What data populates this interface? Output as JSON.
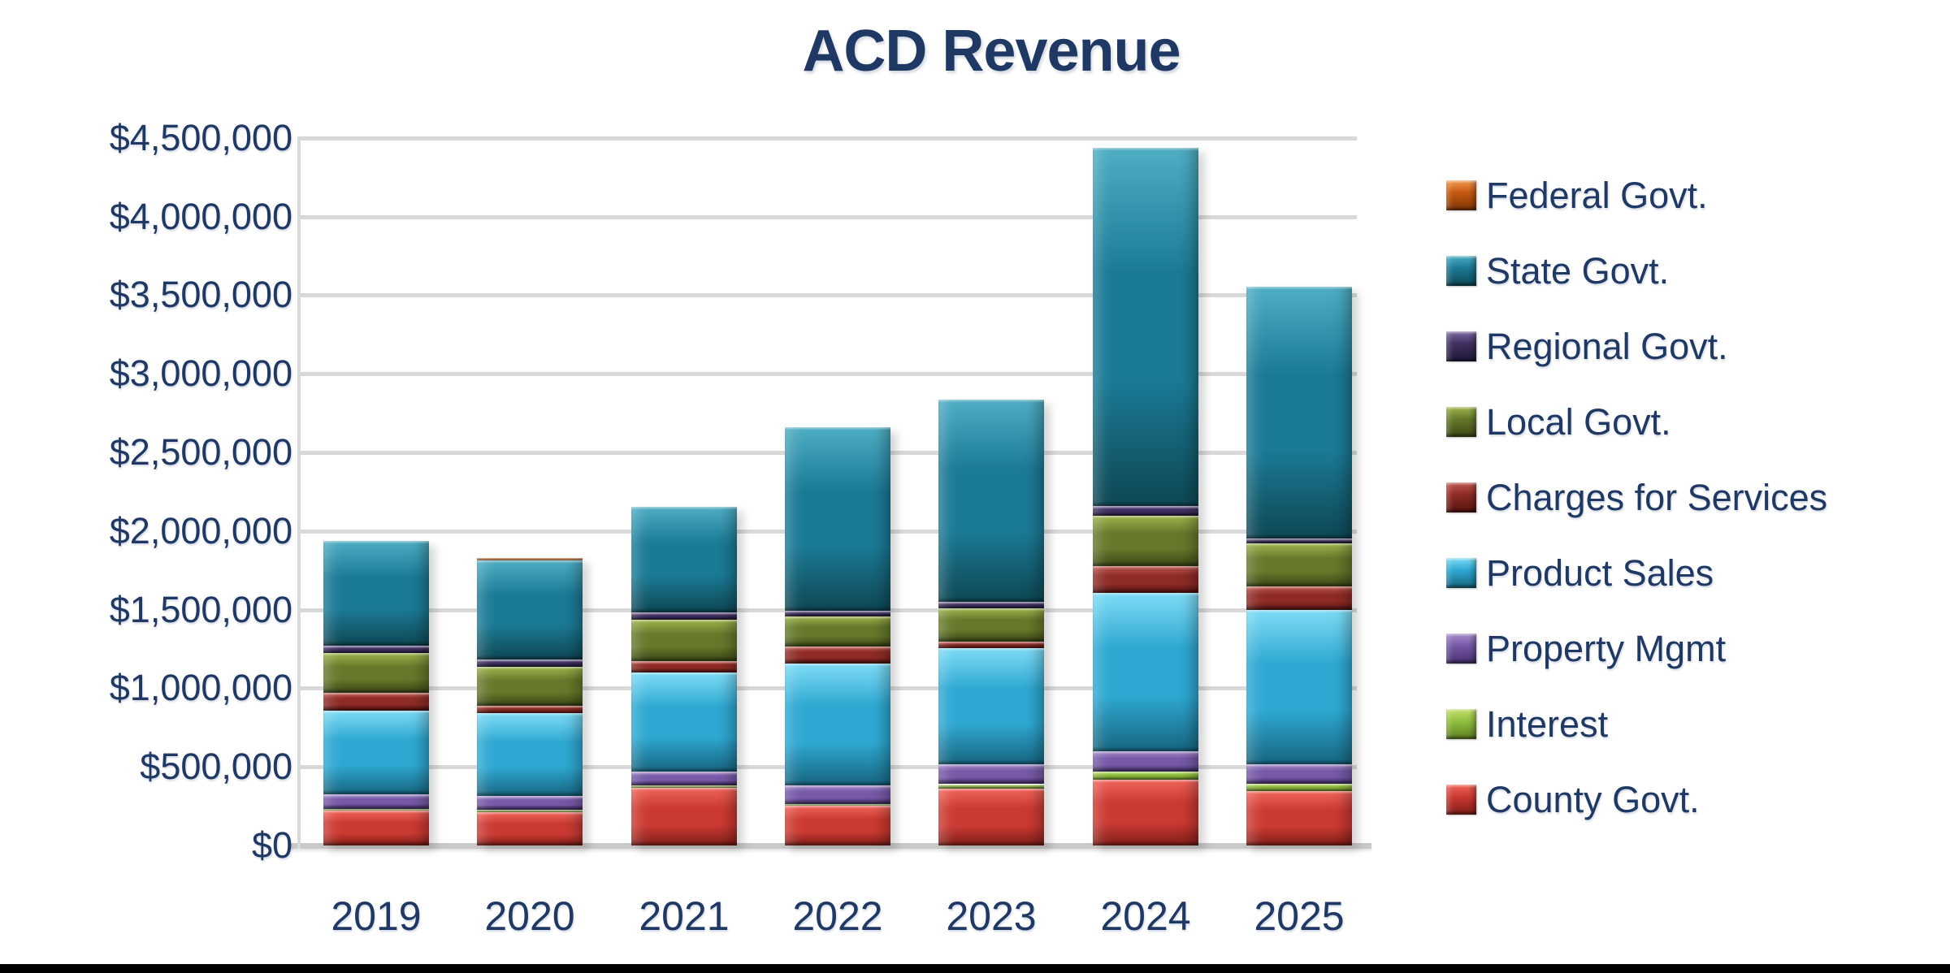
{
  "title": "ACD Revenue",
  "text_color": "#1f3864",
  "gridline_color": "#d9d9d9",
  "background_color": "#ffffff",
  "chart_data": {
    "type": "bar",
    "stacked": true,
    "title": "ACD Revenue",
    "categories": [
      "2019",
      "2020",
      "2021",
      "2022",
      "2023",
      "2024",
      "2025"
    ],
    "xlabel": "",
    "ylabel": "",
    "ylim": [
      0,
      4500000
    ],
    "y_step": 500000,
    "grid": true,
    "legend_position": "right",
    "y_ticks": [
      {
        "value": 0,
        "label": "$0"
      },
      {
        "value": 500000,
        "label": "$500,000"
      },
      {
        "value": 1000000,
        "label": "$1,000,000"
      },
      {
        "value": 1500000,
        "label": "$1,500,000"
      },
      {
        "value": 2000000,
        "label": "$2,000,000"
      },
      {
        "value": 2500000,
        "label": "$2,500,000"
      },
      {
        "value": 3000000,
        "label": "$3,000,000"
      },
      {
        "value": 3500000,
        "label": "$3,500,000"
      },
      {
        "value": 4000000,
        "label": "$4,000,000"
      },
      {
        "value": 4500000,
        "label": "$4,500,000"
      }
    ],
    "series": [
      {
        "name": "Federal Govt.",
        "slug": "federal-govt",
        "color": "#c65911",
        "color_light": "#f59b51",
        "color_dark": "#7d3606",
        "values": [
          0,
          15000,
          0,
          0,
          0,
          0,
          0
        ]
      },
      {
        "name": "State Govt.",
        "slug": "state-govt",
        "color": "#1b7a95",
        "color_light": "#4faec4",
        "color_dark": "#0e4754",
        "values": [
          665000,
          630000,
          670000,
          1165000,
          1285000,
          2275000,
          1600000
        ]
      },
      {
        "name": "Regional Govt.",
        "slug": "regional-govt",
        "color": "#403061",
        "color_light": "#7d6ba0",
        "color_dark": "#201638",
        "values": [
          45000,
          50000,
          50000,
          40000,
          40000,
          65000,
          35000
        ]
      },
      {
        "name": "Local Govt.",
        "slug": "local-govt",
        "color": "#66792b",
        "color_light": "#9db54c",
        "color_dark": "#3a4715",
        "values": [
          255000,
          245000,
          260000,
          190000,
          215000,
          320000,
          270000
        ]
      },
      {
        "name": "Charges for Services",
        "slug": "charges-for-services",
        "color": "#8e2b26",
        "color_light": "#c05a52",
        "color_dark": "#541310",
        "values": [
          115000,
          50000,
          75000,
          110000,
          40000,
          170000,
          150000
        ]
      },
      {
        "name": "Product Sales",
        "slug": "product-sales",
        "color": "#2ea8d2",
        "color_light": "#7fdcf5",
        "color_dark": "#17657f",
        "values": [
          530000,
          525000,
          630000,
          775000,
          740000,
          1005000,
          985000
        ]
      },
      {
        "name": "Property Mgmt",
        "slug": "property-mgmt",
        "color": "#7659a7",
        "color_light": "#a78fcc",
        "color_dark": "#452f6b",
        "values": [
          90000,
          90000,
          90000,
          115000,
          125000,
          130000,
          120000
        ]
      },
      {
        "name": "Interest",
        "slug": "interest",
        "color": "#92c03e",
        "color_light": "#c4e06e",
        "color_dark": "#5c7d22",
        "values": [
          15000,
          15000,
          15000,
          10000,
          30000,
          50000,
          50000
        ]
      },
      {
        "name": "County Govt.",
        "slug": "county-govt",
        "color": "#cb3a32",
        "color_light": "#f0655c",
        "color_dark": "#801d18",
        "values": [
          220000,
          210000,
          365000,
          255000,
          360000,
          420000,
          345000
        ]
      }
    ],
    "stack_order_bottom_to_top": [
      "County Govt.",
      "Interest",
      "Property Mgmt",
      "Product Sales",
      "Charges for Services",
      "Local Govt.",
      "Regional Govt.",
      "State Govt.",
      "Federal Govt."
    ]
  }
}
